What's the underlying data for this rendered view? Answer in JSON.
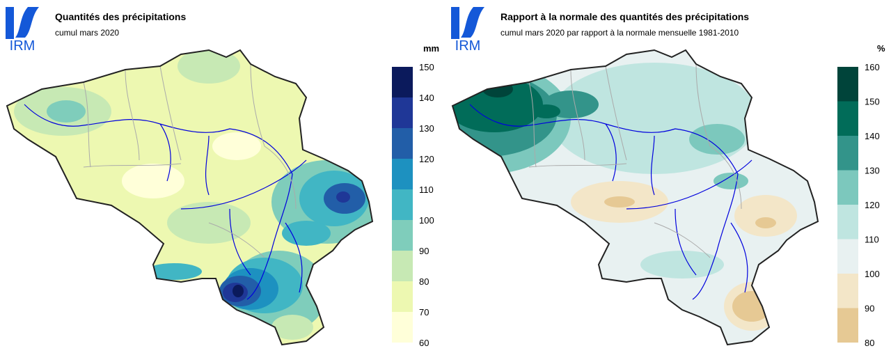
{
  "panels": [
    {
      "logo_text": "IRM",
      "title": "Quantités des précipitations",
      "subtitle": "cumul mars 2020",
      "unit": "mm",
      "legend": {
        "ticks": [
          "150",
          "140",
          "130",
          "120",
          "110",
          "100",
          "90",
          "80",
          "70",
          "60"
        ],
        "colors": [
          "#0b1a5c",
          "#1f3797",
          "#225ea8",
          "#1d91c0",
          "#41b6c4",
          "#7fcdbb",
          "#c7e9b4",
          "#edf8b1",
          "#ffffd9"
        ]
      },
      "base_color": "#edf8b1"
    },
    {
      "logo_text": "IRM",
      "title": "Rapport à la normale des quantités des précipitations",
      "subtitle": "cumul mars 2020 par rapport à la normale mensuelle 1981-2010",
      "unit": "%",
      "legend": {
        "ticks": [
          "160",
          "150",
          "140",
          "130",
          "120",
          "110",
          "100",
          "90",
          "80"
        ],
        "colors": [
          "#00443a",
          "#016c59",
          "#33948a",
          "#7cc8bd",
          "#bfe5e0",
          "#e8f1f1",
          "#f3e6c8",
          "#e6c994"
        ]
      },
      "base_color": "#e8f1f1"
    }
  ]
}
